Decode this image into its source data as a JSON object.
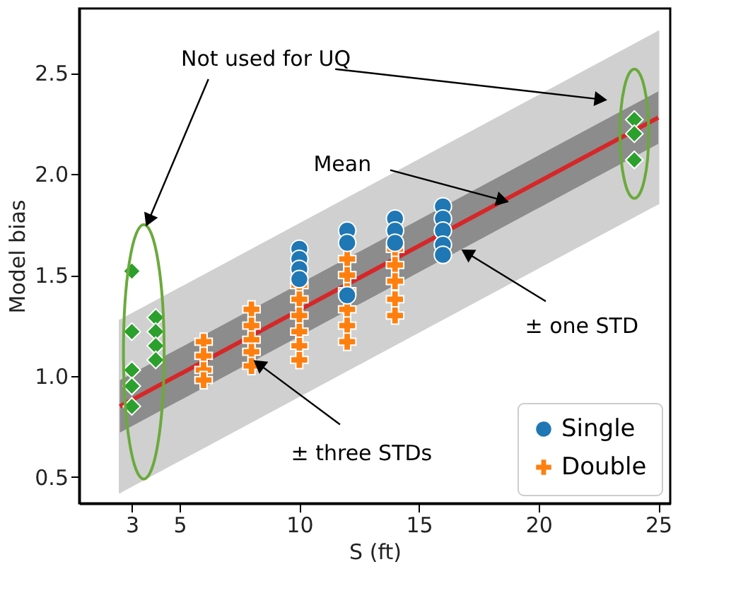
{
  "chart_data": {
    "type": "scatter",
    "xlabel": "S (ft)",
    "ylabel": "Model bias",
    "xlim": [
      0.8,
      25.5
    ],
    "ylim": [
      0.37,
      2.82
    ],
    "xticks": [
      3,
      5,
      10,
      15,
      20,
      25
    ],
    "yticks": [
      0.5,
      {
        "value": 1,
        "label": "1.0"
      },
      1.5,
      {
        "value": 2,
        "label": "2.0"
      },
      2.5
    ],
    "grid": false,
    "legend": "bottom right",
    "annotations": [
      "Not used for UQ",
      {
        "text": "Mean",
        "x": 18.5,
        "y": 1.87
      },
      {
        "text": "± one STD",
        "x": 17,
        "y": 1.61
      },
      {
        "text": "± three STDs",
        "x": 8.3,
        "y": 1.06
      }
    ],
    "series": [
      {
        "type": "line",
        "color": "#d62728",
        "x": [
          2.5,
          25
        ],
        "values": [
          0.85,
          2.28
        ],
        "lower": [
          0.72,
          2.15
        ],
        "upper": [
          0.98,
          2.41
        ],
        "errors": [
          [
            0.42,
            1.28
          ],
          [
            1.85,
            2.71
          ]
        ]
      },
      {
        "color": "#2ca02c",
        "marker": "diamond",
        "x": [
          3,
          3,
          3,
          3,
          3,
          4,
          4,
          4,
          4,
          24,
          24,
          24
        ],
        "values": [
          1.52,
          1.22,
          1.03,
          0.95,
          0.85,
          1.29,
          1.22,
          1.15,
          1.08,
          2.27,
          2.2,
          2.07
        ]
      },
      {
        "name": "Single",
        "color": "#1f77b4",
        "marker": "circle",
        "x": [
          10,
          10,
          10,
          10,
          12,
          12,
          12,
          14,
          14,
          14,
          16,
          16,
          16,
          16,
          16
        ],
        "values": [
          1.63,
          1.58,
          1.53,
          1.48,
          1.72,
          1.66,
          1.4,
          1.78,
          1.72,
          1.66,
          1.84,
          1.78,
          1.72,
          1.65,
          1.6
        ]
      },
      {
        "name": "Double",
        "color": "#ff7f0e",
        "marker": "cross",
        "x": [
          6,
          6,
          6,
          6,
          8,
          8,
          8,
          8,
          8,
          10,
          10,
          10,
          10,
          10,
          10,
          12,
          12,
          12,
          12,
          12,
          12,
          14,
          14,
          14,
          14,
          14
        ],
        "values": [
          1.17,
          1.1,
          1.03,
          0.98,
          1.33,
          1.25,
          1.18,
          1.12,
          1.05,
          1.45,
          1.38,
          1.3,
          1.22,
          1.15,
          1.08,
          1.58,
          1.5,
          1.42,
          1.33,
          1.25,
          1.17,
          1.63,
          1.55,
          1.47,
          1.38,
          1.3
        ]
      }
    ]
  }
}
